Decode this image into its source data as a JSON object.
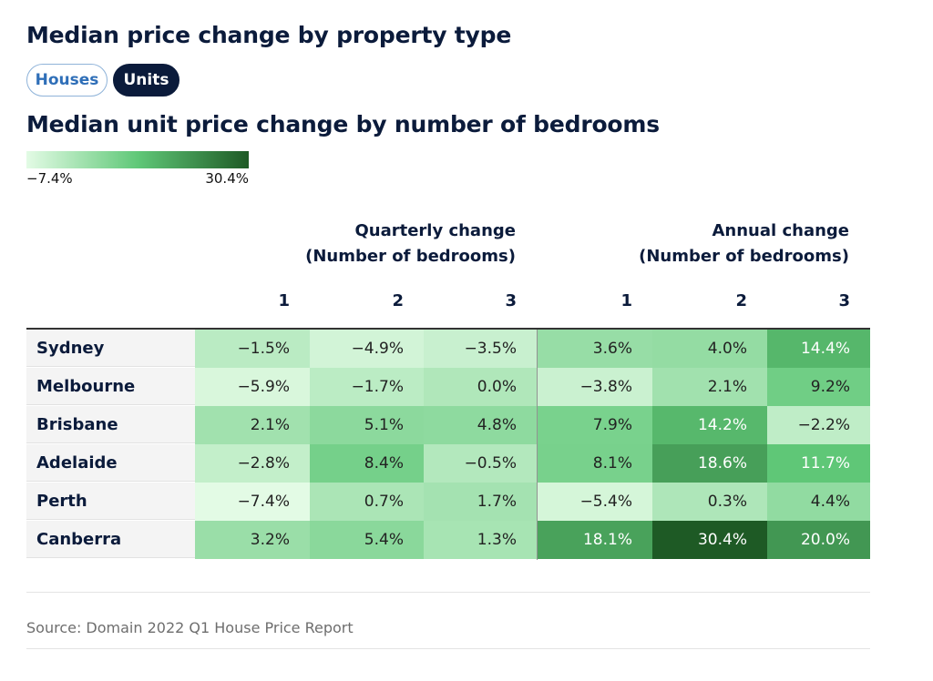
{
  "title": "Median price change by property type",
  "toggles": {
    "houses": "Houses",
    "units": "Units",
    "selected": "units"
  },
  "subtitle": "Median unit price change by number of bedrooms",
  "legend": {
    "min_label": "−7.4%",
    "max_label": "30.4%",
    "min": -7.4,
    "max": 30.4,
    "colors": [
      "#e3fbe5",
      "#60c878",
      "#1e5a25"
    ]
  },
  "source": "Source: Domain 2022 Q1 House Price Report",
  "chart_data": {
    "type": "heatmap",
    "title": "Median unit price change by number of bedrooms",
    "column_groups": [
      {
        "label_line1": "Quarterly change",
        "label_line2": "(Number of bedrooms)",
        "columns": [
          "1",
          "2",
          "3"
        ]
      },
      {
        "label_line1": "Annual change",
        "label_line2": "(Number of bedrooms)",
        "columns": [
          "1",
          "2",
          "3"
        ]
      }
    ],
    "rows": [
      {
        "name": "Sydney",
        "values": [
          -1.5,
          -4.9,
          -3.5,
          3.6,
          4.0,
          14.4
        ],
        "labels": [
          "−1.5%",
          "−4.9%",
          "−3.5%",
          "3.6%",
          "4.0%",
          "14.4%"
        ]
      },
      {
        "name": "Melbourne",
        "values": [
          -5.9,
          -1.7,
          0.0,
          -3.8,
          2.1,
          9.2
        ],
        "labels": [
          "−5.9%",
          "−1.7%",
          "0.0%",
          "−3.8%",
          "2.1%",
          "9.2%"
        ]
      },
      {
        "name": "Brisbane",
        "values": [
          2.1,
          5.1,
          4.8,
          7.9,
          14.2,
          -2.2
        ],
        "labels": [
          "2.1%",
          "5.1%",
          "4.8%",
          "7.9%",
          "14.2%",
          "−2.2%"
        ]
      },
      {
        "name": "Adelaide",
        "values": [
          -2.8,
          8.4,
          -0.5,
          8.1,
          18.6,
          11.7
        ],
        "labels": [
          "−2.8%",
          "8.4%",
          "−0.5%",
          "8.1%",
          "18.6%",
          "11.7%"
        ]
      },
      {
        "name": "Perth",
        "values": [
          -7.4,
          0.7,
          1.7,
          -5.4,
          0.3,
          4.4
        ],
        "labels": [
          "−7.4%",
          "0.7%",
          "1.7%",
          "−5.4%",
          "0.3%",
          "4.4%"
        ]
      },
      {
        "name": "Canberra",
        "values": [
          3.2,
          5.4,
          1.3,
          18.1,
          30.4,
          20.0
        ],
        "labels": [
          "3.2%",
          "5.4%",
          "1.3%",
          "18.1%",
          "30.4%",
          "20.0%"
        ]
      }
    ]
  }
}
